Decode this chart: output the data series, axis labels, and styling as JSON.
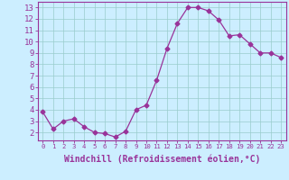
{
  "x": [
    0,
    1,
    2,
    3,
    4,
    5,
    6,
    7,
    8,
    9,
    10,
    11,
    12,
    13,
    14,
    15,
    16,
    17,
    18,
    19,
    20,
    21,
    22,
    23
  ],
  "y": [
    3.8,
    2.3,
    3.0,
    3.2,
    2.5,
    2.0,
    1.9,
    1.6,
    2.1,
    4.0,
    4.4,
    6.6,
    9.4,
    11.6,
    13.0,
    13.0,
    12.7,
    11.9,
    10.5,
    10.6,
    9.8,
    9.0,
    9.0,
    8.6
  ],
  "line_color": "#993399",
  "marker": "D",
  "marker_size": 2.5,
  "bg_color": "#cceeff",
  "grid_color": "#99cccc",
  "xlabel": "Windchill (Refroidissement éolien,°C)",
  "ylim": [
    1.3,
    13.5
  ],
  "xlim": [
    -0.5,
    23.5
  ],
  "yticks": [
    2,
    3,
    4,
    5,
    6,
    7,
    8,
    9,
    10,
    11,
    12,
    13
  ],
  "xticks": [
    0,
    1,
    2,
    3,
    4,
    5,
    6,
    7,
    8,
    9,
    10,
    11,
    12,
    13,
    14,
    15,
    16,
    17,
    18,
    19,
    20,
    21,
    22,
    23
  ],
  "tick_color": "#993399",
  "axis_color": "#993399",
  "label_color": "#993399",
  "xlabel_fontsize": 7.0,
  "ytick_fontsize": 6.5,
  "xtick_fontsize": 5.2
}
